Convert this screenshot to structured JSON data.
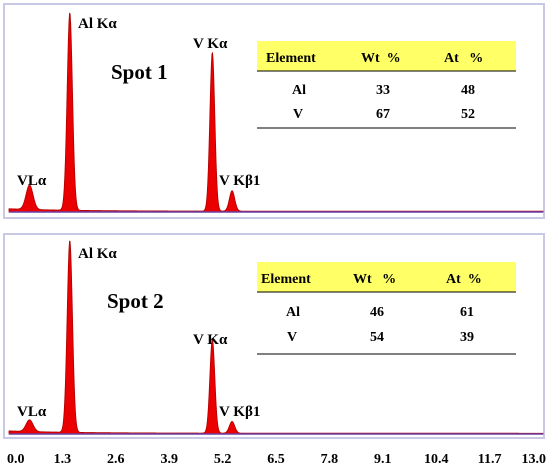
{
  "colors": {
    "frame": "#c9c9e6",
    "fill": "#ea0000",
    "outline": "#b00000",
    "baseline": "#6a3fa8",
    "table_header": "#ffff66"
  },
  "chart_data": [
    {
      "type": "area",
      "title": "Spot 1",
      "xlim": [
        0.0,
        13.0
      ],
      "peaks": [
        {
          "label": "VLα",
          "x": 0.5,
          "height": 0.12,
          "width": 0.085
        },
        {
          "label": "Al Kα",
          "x": 1.48,
          "height": 0.97,
          "width": 0.065
        },
        {
          "label": "V Kα",
          "x": 4.95,
          "height": 0.78,
          "width": 0.06
        },
        {
          "label": "V Kβ1",
          "x": 5.43,
          "height": 0.1,
          "width": 0.065
        }
      ],
      "table": {
        "headers": [
          "Element",
          "Wt  %",
          "At   %"
        ],
        "rows": [
          [
            "Al",
            "33",
            "48"
          ],
          [
            "V",
            "67",
            "52"
          ]
        ]
      }
    },
    {
      "type": "area",
      "title": "Spot 2",
      "xlim": [
        0.0,
        13.0
      ],
      "peaks": [
        {
          "label": "VLα",
          "x": 0.5,
          "height": 0.06,
          "width": 0.085
        },
        {
          "label": "Al Kα",
          "x": 1.48,
          "height": 0.98,
          "width": 0.065
        },
        {
          "label": "V Kα",
          "x": 4.95,
          "height": 0.48,
          "width": 0.06
        },
        {
          "label": "V Kβ1",
          "x": 5.43,
          "height": 0.06,
          "width": 0.065
        }
      ],
      "table": {
        "headers": [
          "Element",
          "Wt   %",
          "At  %"
        ],
        "rows": [
          [
            "Al",
            "46",
            "61"
          ],
          [
            "V",
            "54",
            "39"
          ]
        ]
      }
    }
  ],
  "x_axis": {
    "ticks": [
      0.0,
      1.3,
      2.6,
      3.9,
      5.2,
      6.5,
      7.8,
      9.1,
      10.4,
      11.7,
      13.0
    ],
    "tick_labels": [
      "0.0",
      "1.3",
      "2.6",
      "3.9",
      "5.2",
      "6.5",
      "7.8",
      "9.1",
      "10.4",
      "11.7",
      "13.0"
    ]
  }
}
